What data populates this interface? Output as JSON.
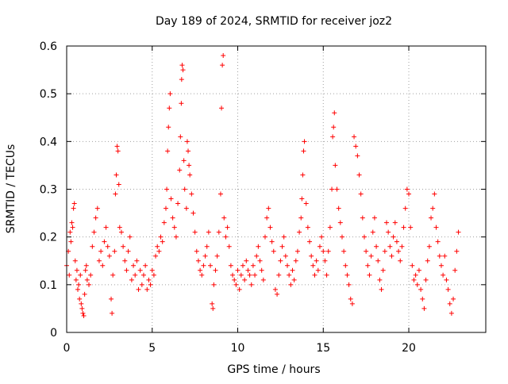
{
  "chart_data": {
    "type": "scatter",
    "title": "Day 189 of 2024, SRMTID for receiver joz2",
    "xlabel": "GPS time / hours",
    "ylabel": "SRMTID / TECUs",
    "xlim": [
      0,
      24.5
    ],
    "ylim": [
      0,
      0.6
    ],
    "x_ticks": [
      0,
      5,
      10,
      15,
      20
    ],
    "x_tick_labels": [
      "0",
      "5",
      "10",
      "15",
      "20"
    ],
    "y_ticks": [
      0,
      0.1,
      0.2,
      0.3,
      0.4,
      0.5,
      0.6
    ],
    "y_tick_labels": [
      "0",
      "0.1",
      "0.2",
      "0.3",
      "0.4",
      "0.5",
      "0.6"
    ],
    "grid": true,
    "marker": "plus",
    "series_color": "#ff0000",
    "series": [
      {
        "name": "SRMTID",
        "points": [
          [
            0.0,
            0.14
          ],
          [
            0.1,
            0.17
          ],
          [
            0.15,
            0.12
          ],
          [
            0.2,
            0.21
          ],
          [
            0.25,
            0.19
          ],
          [
            0.3,
            0.23
          ],
          [
            0.35,
            0.22
          ],
          [
            0.4,
            0.26
          ],
          [
            0.45,
            0.27
          ],
          [
            0.5,
            0.15
          ],
          [
            0.55,
            0.11
          ],
          [
            0.6,
            0.13
          ],
          [
            0.65,
            0.09
          ],
          [
            0.7,
            0.1
          ],
          [
            0.75,
            0.07
          ],
          [
            0.8,
            0.12
          ],
          [
            0.85,
            0.06
          ],
          [
            0.9,
            0.05
          ],
          [
            0.95,
            0.04
          ],
          [
            1.0,
            0.035
          ],
          [
            1.05,
            0.08
          ],
          [
            1.1,
            0.13
          ],
          [
            1.15,
            0.14
          ],
          [
            1.2,
            0.11
          ],
          [
            1.3,
            0.1
          ],
          [
            1.4,
            0.12
          ],
          [
            1.5,
            0.18
          ],
          [
            1.6,
            0.21
          ],
          [
            1.7,
            0.24
          ],
          [
            1.8,
            0.26
          ],
          [
            1.9,
            0.15
          ],
          [
            2.0,
            0.17
          ],
          [
            2.1,
            0.14
          ],
          [
            2.2,
            0.19
          ],
          [
            2.3,
            0.22
          ],
          [
            2.4,
            0.18
          ],
          [
            2.5,
            0.16
          ],
          [
            2.6,
            0.07
          ],
          [
            2.65,
            0.04
          ],
          [
            2.7,
            0.12
          ],
          [
            2.8,
            0.17
          ],
          [
            2.85,
            0.29
          ],
          [
            2.9,
            0.33
          ],
          [
            2.95,
            0.39
          ],
          [
            3.0,
            0.38
          ],
          [
            3.05,
            0.31
          ],
          [
            3.1,
            0.22
          ],
          [
            3.2,
            0.21
          ],
          [
            3.3,
            0.18
          ],
          [
            3.4,
            0.15
          ],
          [
            3.5,
            0.13
          ],
          [
            3.6,
            0.17
          ],
          [
            3.7,
            0.2
          ],
          [
            3.8,
            0.11
          ],
          [
            3.9,
            0.14
          ],
          [
            4.0,
            0.12
          ],
          [
            4.1,
            0.15
          ],
          [
            4.2,
            0.09
          ],
          [
            4.3,
            0.13
          ],
          [
            4.4,
            0.1
          ],
          [
            4.5,
            0.12
          ],
          [
            4.6,
            0.14
          ],
          [
            4.7,
            0.09
          ],
          [
            4.8,
            0.11
          ],
          [
            4.9,
            0.1
          ],
          [
            5.0,
            0.13
          ],
          [
            5.1,
            0.12
          ],
          [
            5.2,
            0.16
          ],
          [
            5.3,
            0.18
          ],
          [
            5.4,
            0.17
          ],
          [
            5.5,
            0.2
          ],
          [
            5.6,
            0.19
          ],
          [
            5.7,
            0.23
          ],
          [
            5.8,
            0.26
          ],
          [
            5.85,
            0.3
          ],
          [
            5.9,
            0.38
          ],
          [
            5.95,
            0.43
          ],
          [
            6.0,
            0.47
          ],
          [
            6.05,
            0.5
          ],
          [
            6.1,
            0.28
          ],
          [
            6.2,
            0.24
          ],
          [
            6.3,
            0.22
          ],
          [
            6.4,
            0.2
          ],
          [
            6.5,
            0.27
          ],
          [
            6.6,
            0.34
          ],
          [
            6.65,
            0.41
          ],
          [
            6.7,
            0.48
          ],
          [
            6.72,
            0.53
          ],
          [
            6.75,
            0.56
          ],
          [
            6.8,
            0.55
          ],
          [
            6.85,
            0.36
          ],
          [
            6.9,
            0.3
          ],
          [
            7.0,
            0.26
          ],
          [
            7.05,
            0.4
          ],
          [
            7.1,
            0.38
          ],
          [
            7.15,
            0.35
          ],
          [
            7.2,
            0.33
          ],
          [
            7.3,
            0.29
          ],
          [
            7.4,
            0.25
          ],
          [
            7.5,
            0.21
          ],
          [
            7.6,
            0.17
          ],
          [
            7.7,
            0.15
          ],
          [
            7.8,
            0.13
          ],
          [
            7.9,
            0.12
          ],
          [
            8.0,
            0.14
          ],
          [
            8.1,
            0.16
          ],
          [
            8.2,
            0.18
          ],
          [
            8.3,
            0.21
          ],
          [
            8.4,
            0.14
          ],
          [
            8.5,
            0.06
          ],
          [
            8.55,
            0.05
          ],
          [
            8.6,
            0.1
          ],
          [
            8.7,
            0.13
          ],
          [
            8.8,
            0.16
          ],
          [
            8.9,
            0.21
          ],
          [
            9.0,
            0.29
          ],
          [
            9.05,
            0.47
          ],
          [
            9.1,
            0.56
          ],
          [
            9.15,
            0.58
          ],
          [
            9.2,
            0.24
          ],
          [
            9.3,
            0.2
          ],
          [
            9.4,
            0.22
          ],
          [
            9.5,
            0.18
          ],
          [
            9.6,
            0.14
          ],
          [
            9.7,
            0.12
          ],
          [
            9.8,
            0.11
          ],
          [
            9.9,
            0.1
          ],
          [
            10.0,
            0.13
          ],
          [
            10.1,
            0.09
          ],
          [
            10.2,
            0.12
          ],
          [
            10.3,
            0.14
          ],
          [
            10.4,
            0.11
          ],
          [
            10.5,
            0.15
          ],
          [
            10.6,
            0.13
          ],
          [
            10.7,
            0.12
          ],
          [
            10.8,
            0.1
          ],
          [
            10.9,
            0.14
          ],
          [
            11.0,
            0.12
          ],
          [
            11.1,
            0.16
          ],
          [
            11.2,
            0.18
          ],
          [
            11.3,
            0.15
          ],
          [
            11.4,
            0.13
          ],
          [
            11.5,
            0.11
          ],
          [
            11.6,
            0.2
          ],
          [
            11.7,
            0.24
          ],
          [
            11.8,
            0.26
          ],
          [
            11.9,
            0.22
          ],
          [
            12.0,
            0.19
          ],
          [
            12.1,
            0.17
          ],
          [
            12.2,
            0.09
          ],
          [
            12.3,
            0.08
          ],
          [
            12.4,
            0.12
          ],
          [
            12.5,
            0.15
          ],
          [
            12.6,
            0.18
          ],
          [
            12.7,
            0.2
          ],
          [
            12.8,
            0.16
          ],
          [
            12.9,
            0.14
          ],
          [
            13.0,
            0.12
          ],
          [
            13.1,
            0.1
          ],
          [
            13.2,
            0.13
          ],
          [
            13.3,
            0.11
          ],
          [
            13.4,
            0.15
          ],
          [
            13.5,
            0.17
          ],
          [
            13.6,
            0.21
          ],
          [
            13.7,
            0.24
          ],
          [
            13.75,
            0.28
          ],
          [
            13.8,
            0.33
          ],
          [
            13.85,
            0.38
          ],
          [
            13.9,
            0.4
          ],
          [
            14.0,
            0.27
          ],
          [
            14.1,
            0.22
          ],
          [
            14.2,
            0.19
          ],
          [
            14.3,
            0.16
          ],
          [
            14.4,
            0.14
          ],
          [
            14.5,
            0.12
          ],
          [
            14.6,
            0.15
          ],
          [
            14.7,
            0.13
          ],
          [
            14.8,
            0.18
          ],
          [
            14.9,
            0.2
          ],
          [
            15.0,
            0.17
          ],
          [
            15.1,
            0.15
          ],
          [
            15.2,
            0.12
          ],
          [
            15.3,
            0.17
          ],
          [
            15.4,
            0.22
          ],
          [
            15.5,
            0.3
          ],
          [
            15.55,
            0.41
          ],
          [
            15.6,
            0.43
          ],
          [
            15.65,
            0.46
          ],
          [
            15.7,
            0.35
          ],
          [
            15.8,
            0.3
          ],
          [
            15.9,
            0.26
          ],
          [
            16.0,
            0.23
          ],
          [
            16.1,
            0.2
          ],
          [
            16.2,
            0.17
          ],
          [
            16.3,
            0.14
          ],
          [
            16.4,
            0.12
          ],
          [
            16.5,
            0.1
          ],
          [
            16.6,
            0.07
          ],
          [
            16.7,
            0.06
          ],
          [
            16.8,
            0.41
          ],
          [
            16.9,
            0.39
          ],
          [
            17.0,
            0.37
          ],
          [
            17.1,
            0.33
          ],
          [
            17.2,
            0.29
          ],
          [
            17.3,
            0.24
          ],
          [
            17.4,
            0.2
          ],
          [
            17.5,
            0.17
          ],
          [
            17.6,
            0.14
          ],
          [
            17.7,
            0.12
          ],
          [
            17.8,
            0.16
          ],
          [
            17.9,
            0.21
          ],
          [
            18.0,
            0.24
          ],
          [
            18.1,
            0.18
          ],
          [
            18.2,
            0.15
          ],
          [
            18.3,
            0.11
          ],
          [
            18.4,
            0.09
          ],
          [
            18.5,
            0.13
          ],
          [
            18.6,
            0.17
          ],
          [
            18.7,
            0.23
          ],
          [
            18.8,
            0.21
          ],
          [
            18.9,
            0.18
          ],
          [
            19.0,
            0.16
          ],
          [
            19.1,
            0.2
          ],
          [
            19.2,
            0.23
          ],
          [
            19.3,
            0.19
          ],
          [
            19.4,
            0.17
          ],
          [
            19.5,
            0.15
          ],
          [
            19.6,
            0.18
          ],
          [
            19.7,
            0.22
          ],
          [
            19.8,
            0.26
          ],
          [
            19.9,
            0.3
          ],
          [
            20.0,
            0.29
          ],
          [
            20.1,
            0.22
          ],
          [
            20.2,
            0.14
          ],
          [
            20.3,
            0.11
          ],
          [
            20.4,
            0.12
          ],
          [
            20.5,
            0.1
          ],
          [
            20.6,
            0.13
          ],
          [
            20.7,
            0.09
          ],
          [
            20.8,
            0.07
          ],
          [
            20.9,
            0.05
          ],
          [
            21.0,
            0.11
          ],
          [
            21.1,
            0.15
          ],
          [
            21.2,
            0.18
          ],
          [
            21.3,
            0.24
          ],
          [
            21.4,
            0.26
          ],
          [
            21.5,
            0.29
          ],
          [
            21.6,
            0.22
          ],
          [
            21.7,
            0.19
          ],
          [
            21.8,
            0.16
          ],
          [
            21.9,
            0.14
          ],
          [
            22.0,
            0.12
          ],
          [
            22.1,
            0.16
          ],
          [
            22.2,
            0.11
          ],
          [
            22.3,
            0.09
          ],
          [
            22.4,
            0.06
          ],
          [
            22.5,
            0.04
          ],
          [
            22.6,
            0.07
          ],
          [
            22.7,
            0.13
          ],
          [
            22.8,
            0.17
          ],
          [
            22.9,
            0.21
          ]
        ]
      }
    ]
  }
}
